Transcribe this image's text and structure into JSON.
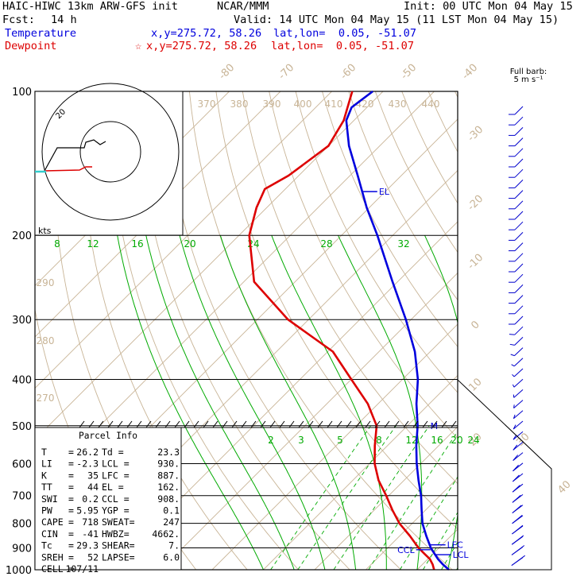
{
  "header": {
    "model": "HAIC-HIWC 13km ARW-GFS init",
    "org": "NCAR/MMM",
    "init": "Init: 00 UTC Mon 04 May 15",
    "fcst_label": "Fcst:",
    "fcst_value": "14 h",
    "valid": "Valid: 14 UTC Mon 04 May 15 (11 LST Mon 04 May 15)",
    "temp_label": "Temperature",
    "temp_xy": "x,y=275.72, 58.26",
    "temp_latlon": "lat,lon=  0.05, -51.07",
    "dew_label": "Dewpoint",
    "dew_marker": "☆",
    "dew_xy": "x,y=275.72, 58.26",
    "dew_latlon": "lat,lon=  0.05, -51.07",
    "barb_title_1": "Full barb:",
    "barb_title_2": "5 m s⁻¹"
  },
  "colors": {
    "temperature": "#0000dd",
    "dewpoint": "#dd0000",
    "isotherm": "#c8b496",
    "mixing": "#00aa00",
    "hodo_temp": "#dd0000",
    "hodo_cyan": "#33cccc",
    "barb": "#0000cc"
  },
  "chart_data": {
    "type": "line",
    "pressure_levels": [
      100,
      200,
      300,
      400,
      500,
      600,
      700,
      800,
      900,
      1000
    ],
    "isotherm_labels": [
      "-80",
      "-70",
      "-60",
      "-50",
      "-40",
      "-30",
      "-20",
      "-10",
      "0",
      "10",
      "20",
      "30",
      "40"
    ],
    "theta_labels_top": [
      "370",
      "380",
      "390",
      "400",
      "410",
      "420",
      "430",
      "440"
    ],
    "theta_labels_left": [
      "290",
      "280",
      "270"
    ],
    "mixing_top": [
      "8",
      "12",
      "16",
      "20",
      "24",
      "28",
      "32"
    ],
    "mixing_bottom": [
      "2",
      "3",
      "5",
      "8",
      "12",
      "16",
      "20",
      "24"
    ],
    "series": [
      {
        "name": "Temperature",
        "p": [
          1000,
          975,
          950,
          925,
          900,
          850,
          800,
          750,
          700,
          650,
          600,
          550,
          500,
          450,
          400,
          350,
          300,
          250,
          200,
          175,
          150,
          130,
          115,
          108,
          100
        ],
        "t": [
          26.2,
          24.0,
          22.0,
          20.2,
          18.4,
          15.2,
          12.0,
          9.2,
          6.3,
          2.8,
          -0.8,
          -4.4,
          -8.0,
          -12.5,
          -17.0,
          -23.0,
          -31.0,
          -41.0,
          -53.0,
          -60.5,
          -68.5,
          -76.0,
          -81.5,
          -83.0,
          -82.0
        ]
      },
      {
        "name": "Dewpoint",
        "p": [
          1000,
          975,
          950,
          925,
          900,
          850,
          800,
          750,
          700,
          650,
          600,
          550,
          500,
          450,
          400,
          350,
          300,
          250,
          200,
          175,
          160,
          150,
          130,
          115,
          100
        ],
        "t": [
          23.3,
          22.0,
          20.4,
          18.2,
          16.0,
          12.0,
          7.5,
          3.5,
          -0.5,
          -5.0,
          -9.0,
          -12.5,
          -16.0,
          -22.0,
          -30.0,
          -39.0,
          -54.0,
          -68.0,
          -78.0,
          -82.0,
          -84.0,
          -82.0,
          -80.0,
          -82.0,
          -86.0
        ]
      }
    ],
    "levels_annot": [
      {
        "label": "EL",
        "p": 162
      },
      {
        "label": "LFC",
        "p": 887
      },
      {
        "label": "LCL",
        "p": 930
      },
      {
        "label": "CCL",
        "p": 908
      },
      {
        "label": "M",
        "p": 500
      }
    ],
    "hodo_label": "kts",
    "hodo_ring_label": "20"
  },
  "parcel": {
    "title": "Parcel Info",
    "rows": [
      [
        "T",
        "=",
        "26.2",
        "Td =",
        "23.3"
      ],
      [
        "LI",
        "=",
        "-2.3",
        "LCL =",
        "930."
      ],
      [
        "K",
        "=",
        "35",
        "LFC =",
        "887."
      ],
      [
        "TT",
        "=",
        "44",
        "EL =",
        "162."
      ],
      [
        "SWI",
        "=",
        "0.2",
        "CCL =",
        "908."
      ],
      [
        "PW",
        "=",
        "5.95",
        "YGP =",
        "0.1"
      ],
      [
        "CAPE",
        "=",
        "718",
        "SWEAT=",
        "247"
      ],
      [
        "CIN",
        "=",
        "-41",
        "HWBZ=",
        "4662."
      ],
      [
        "Tc",
        "=",
        "29.3",
        "SHEAR=",
        "7."
      ],
      [
        "SREH",
        "=",
        "52",
        "LAPSE=",
        "6.0"
      ],
      [
        "CELL",
        "=",
        "107/11",
        "",
        ""
      ]
    ]
  }
}
